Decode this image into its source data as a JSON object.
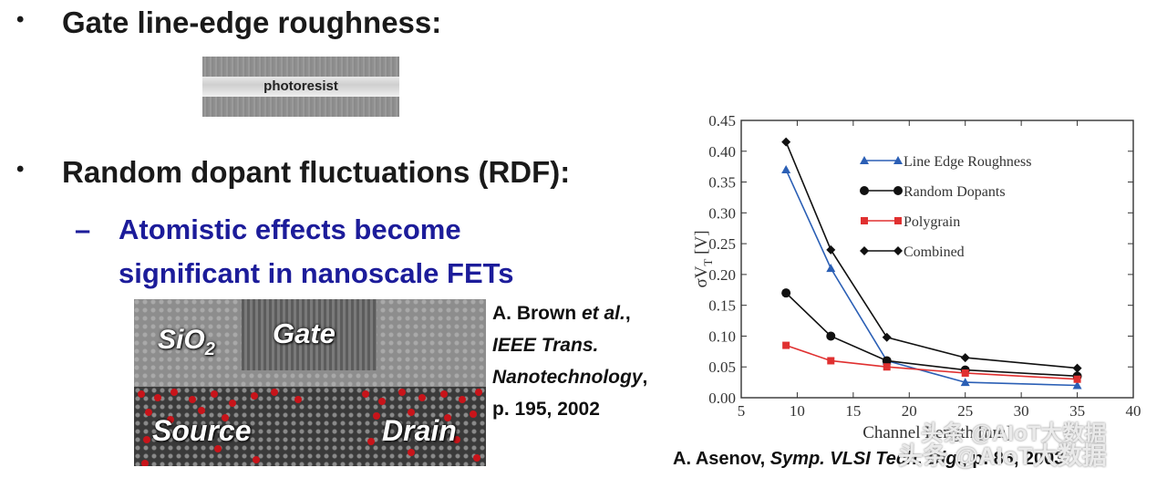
{
  "bullets": [
    {
      "text": "Gate line-edge roughness:"
    },
    {
      "text": "Random dopant fluctuations (RDF):"
    }
  ],
  "sub_bullet": {
    "line1": "Atomistic effects become",
    "line2": "significant in nanoscale FETs"
  },
  "photoresist_image": {
    "label": "photoresist"
  },
  "tem_image": {
    "labels": {
      "sio2": "SiO",
      "sio2_sub": "2",
      "gate": "Gate",
      "source": "Source",
      "drain": "Drain"
    }
  },
  "citation_brown": {
    "line1_author": "A. Brown ",
    "line1_etal": "et al.",
    "line1_end": ",",
    "line2": "IEEE Trans.",
    "line3": "Nanotechnology",
    "line3_end": ",",
    "line4": "p. 195, 2002"
  },
  "citation_asenov": {
    "author": "A. Asenov, ",
    "venue": "Symp. VLSI Tech. Dig.",
    "rest": ", p. 86, 2003"
  },
  "watermark": {
    "line1": "头条 @AIoT大数据",
    "line2": "头条 @AIoT大数据"
  },
  "chart_data": {
    "type": "line",
    "xlabel": "Channel Length [nm]",
    "ylabel": "σV",
    "ylabel_sub": "T",
    "ylabel_unit": " [V]",
    "xlim": [
      5,
      40
    ],
    "ylim": [
      0,
      0.45
    ],
    "xticks": [
      "5",
      "10",
      "15",
      "20",
      "25",
      "30",
      "35",
      "40"
    ],
    "yticks": [
      "0.00",
      "0.05",
      "0.10",
      "0.15",
      "0.20",
      "0.25",
      "0.30",
      "0.35",
      "0.40",
      "0.45"
    ],
    "legend_position": "upper-right",
    "series": [
      {
        "name": "Line Edge Roughness",
        "color": "#2b5fb5",
        "marker": "triangle",
        "x": [
          9,
          13,
          18,
          25,
          35
        ],
        "y": [
          0.37,
          0.21,
          0.06,
          0.025,
          0.02
        ]
      },
      {
        "name": "Random Dopants",
        "color": "#111111",
        "marker": "circle",
        "x": [
          9,
          13,
          18,
          25,
          35
        ],
        "y": [
          0.17,
          0.1,
          0.06,
          0.045,
          0.035
        ]
      },
      {
        "name": "Polygrain",
        "color": "#e03030",
        "marker": "square",
        "x": [
          9,
          13,
          18,
          25,
          35
        ],
        "y": [
          0.085,
          0.06,
          0.05,
          0.04,
          0.03
        ]
      },
      {
        "name": "Combined",
        "color": "#111111",
        "marker": "diamond",
        "x": [
          9,
          13,
          18,
          25,
          35
        ],
        "y": [
          0.415,
          0.24,
          0.098,
          0.065,
          0.048
        ]
      }
    ]
  }
}
